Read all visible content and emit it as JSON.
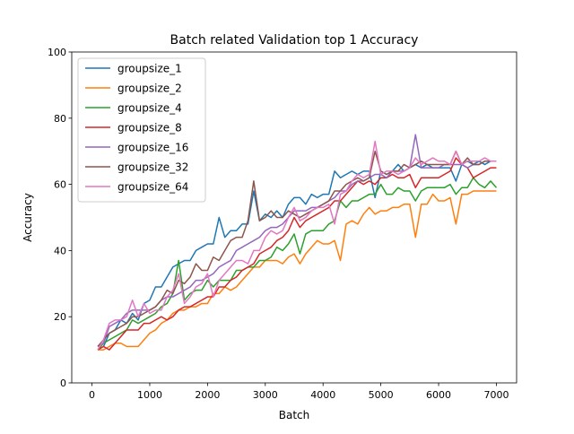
{
  "chart_data": {
    "type": "line",
    "title": "Batch related Validation top 1 Accuracy",
    "xlabel": "Batch",
    "ylabel": "Accuracy",
    "xlim": [
      -350,
      7350
    ],
    "ylim": [
      0,
      100
    ],
    "xticks": [
      0,
      1000,
      2000,
      3000,
      4000,
      5000,
      6000,
      7000
    ],
    "yticks": [
      0,
      20,
      40,
      60,
      80,
      100
    ],
    "grid": false,
    "legend_position": "upper-left",
    "x": [
      100,
      200,
      300,
      400,
      500,
      600,
      700,
      800,
      900,
      1000,
      1100,
      1200,
      1300,
      1400,
      1500,
      1600,
      1700,
      1800,
      1900,
      2000,
      2100,
      2200,
      2300,
      2400,
      2500,
      2600,
      2700,
      2800,
      2900,
      3000,
      3100,
      3200,
      3300,
      3400,
      3500,
      3600,
      3700,
      3800,
      3900,
      4000,
      4100,
      4200,
      4300,
      4400,
      4500,
      4600,
      4700,
      4800,
      4900,
      5000,
      5100,
      5200,
      5300,
      5400,
      5500,
      5600,
      5700,
      5800,
      5900,
      6000,
      6100,
      6200,
      6300,
      6400,
      6500,
      6600,
      6700,
      6800,
      6900,
      7000
    ],
    "series": [
      {
        "name": "groupsize_1",
        "color": "#1f77b4",
        "values": [
          10,
          11,
          15,
          16,
          19,
          18,
          21,
          19,
          24,
          25,
          29,
          29,
          32,
          35,
          36,
          37,
          37,
          40,
          41,
          42,
          42,
          50,
          44,
          46,
          46,
          48,
          48,
          58,
          49,
          51,
          50,
          52,
          50,
          54,
          56,
          56,
          54,
          57,
          56,
          57,
          57,
          64,
          62,
          63,
          64,
          63,
          64,
          64,
          56,
          64,
          63,
          64,
          66,
          64,
          65,
          66,
          65,
          66,
          65,
          65,
          65,
          65,
          61,
          66,
          67,
          66,
          67,
          66,
          67,
          67
        ]
      },
      {
        "name": "groupsize_2",
        "color": "#ff7f0e",
        "values": [
          10,
          10,
          11,
          12,
          12,
          11,
          11,
          11,
          13,
          15,
          16,
          18,
          19,
          21,
          22,
          22,
          23,
          23,
          24,
          24,
          27,
          27,
          29,
          28,
          29,
          31,
          33,
          35,
          35,
          37,
          37,
          37,
          36,
          38,
          39,
          36,
          39,
          41,
          43,
          42,
          42,
          43,
          37,
          48,
          49,
          48,
          51,
          53,
          51,
          52,
          52,
          53,
          53,
          54,
          54,
          44,
          54,
          54,
          57,
          55,
          55,
          56,
          48,
          57,
          57,
          58,
          58,
          58,
          58,
          58
        ]
      },
      {
        "name": "groupsize_4",
        "color": "#2ca02c",
        "values": [
          10,
          12,
          13,
          14,
          15,
          16,
          19,
          18,
          19,
          20,
          21,
          23,
          24,
          27,
          37,
          25,
          27,
          28,
          28,
          31,
          29,
          31,
          31,
          31,
          34,
          34,
          35,
          35,
          37,
          37,
          38,
          41,
          40,
          42,
          45,
          39,
          45,
          46,
          46,
          46,
          48,
          49,
          55,
          53,
          55,
          55,
          56,
          57,
          57,
          60,
          57,
          57,
          59,
          58,
          58,
          55,
          58,
          59,
          59,
          59,
          59,
          60,
          57,
          59,
          59,
          62,
          60,
          59,
          61,
          59
        ]
      },
      {
        "name": "groupsize_8",
        "color": "#d62728",
        "values": [
          10,
          11,
          10,
          12,
          14,
          16,
          16,
          16,
          18,
          18,
          19,
          20,
          19,
          20,
          22,
          23,
          23,
          24,
          25,
          26,
          26,
          29,
          29,
          31,
          32,
          34,
          35,
          36,
          39,
          40,
          41,
          43,
          44,
          46,
          50,
          47,
          49,
          50,
          51,
          52,
          53,
          55,
          55,
          57,
          59,
          61,
          60,
          61,
          60,
          62,
          62,
          63,
          62,
          62,
          63,
          59,
          62,
          62,
          62,
          62,
          63,
          64,
          68,
          66,
          65,
          62,
          63,
          64,
          65,
          65
        ]
      },
      {
        "name": "groupsize_16",
        "color": "#9467bd",
        "values": [
          11,
          12,
          17,
          18,
          19,
          21,
          22,
          22,
          22,
          22,
          23,
          25,
          26,
          26,
          27,
          28,
          29,
          31,
          31,
          32,
          33,
          35,
          36,
          37,
          40,
          41,
          42,
          43,
          44,
          46,
          47,
          47,
          48,
          50,
          52,
          52,
          52,
          53,
          53,
          54,
          55,
          56,
          58,
          58,
          60,
          61,
          61,
          62,
          63,
          63,
          62,
          64,
          64,
          64,
          65,
          75,
          65,
          65,
          65,
          65,
          66,
          66,
          66,
          66,
          65,
          66,
          66,
          67,
          67,
          67
        ]
      },
      {
        "name": "groupsize_32",
        "color": "#8c564b",
        "values": [
          11,
          13,
          15,
          16,
          17,
          18,
          20,
          20,
          21,
          22,
          23,
          25,
          28,
          27,
          31,
          30,
          32,
          36,
          34,
          34,
          38,
          37,
          40,
          43,
          44,
          44,
          49,
          61,
          49,
          50,
          52,
          50,
          50,
          52,
          51,
          50,
          51,
          52,
          53,
          54,
          55,
          58,
          58,
          60,
          61,
          62,
          61,
          62,
          70,
          64,
          63,
          64,
          64,
          66,
          65,
          66,
          67,
          66,
          66,
          66,
          66,
          66,
          70,
          66,
          68,
          66,
          66,
          67,
          67,
          67
        ]
      },
      {
        "name": "groupsize_64",
        "color": "#e377c2",
        "values": [
          10,
          13,
          18,
          19,
          19,
          20,
          25,
          20,
          24,
          21,
          22,
          22,
          26,
          28,
          33,
          24,
          26,
          29,
          30,
          33,
          26,
          31,
          33,
          35,
          37,
          37,
          36,
          40,
          40,
          44,
          46,
          45,
          46,
          50,
          53,
          49,
          50,
          52,
          53,
          53,
          54,
          48,
          57,
          58,
          61,
          63,
          62,
          63,
          73,
          63,
          64,
          64,
          63,
          64,
          65,
          68,
          66,
          67,
          68,
          67,
          67,
          66,
          70,
          66,
          67,
          67,
          67,
          68,
          67,
          67
        ]
      }
    ]
  }
}
